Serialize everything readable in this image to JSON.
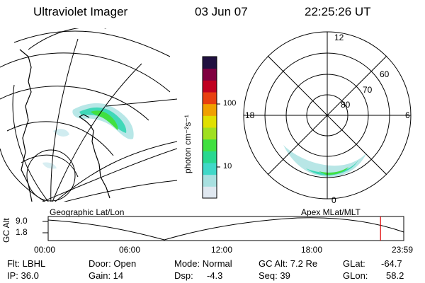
{
  "header": {
    "instrument": "Ultraviolet Imager",
    "date": "03 Jun 07",
    "time": "22:25:26 UT"
  },
  "colorbar": {
    "unit_label": "photon cm⁻²s⁻¹",
    "ticks": [
      "100",
      "10"
    ],
    "colors": [
      "#e0e8f0",
      "#a8e0e0",
      "#40d8c8",
      "#28d890",
      "#40e040",
      "#a0e020",
      "#e0e000",
      "#f0a000",
      "#e84010",
      "#c00020",
      "#800040",
      "#201040"
    ]
  },
  "polar_plot": {
    "mlt_labels": {
      "top": "12",
      "left": "18",
      "right": "6",
      "bottom": "0"
    },
    "lat_labels": [
      "60",
      "70",
      "80"
    ]
  },
  "timeline": {
    "left_title": "Geographic Lat/Lon",
    "right_title": "Apex  MLat/MLT",
    "axis_label": "GC Alt",
    "y_ticks": [
      "9.0",
      "1.8"
    ],
    "x_ticks": [
      "00:00",
      "06:00",
      "12:00",
      "18:00",
      "23:59"
    ],
    "marker_time": "22:25",
    "marker_color": "#e00000"
  },
  "info": {
    "flt": "Flt: LBHL",
    "ip": "IP: 36.0",
    "door": "Door: Open",
    "gain": "Gain: 14",
    "mode": "Mode: Normal",
    "dsp_label": "Dsp:",
    "dsp_value": "-4.3",
    "gc_alt": "GC Alt: 7.2 Re",
    "seq": "Seq: 39",
    "glat_label": "GLat:",
    "glat_value": "-64.7",
    "glon_label": "GLon:",
    "glon_value": "58.2"
  }
}
